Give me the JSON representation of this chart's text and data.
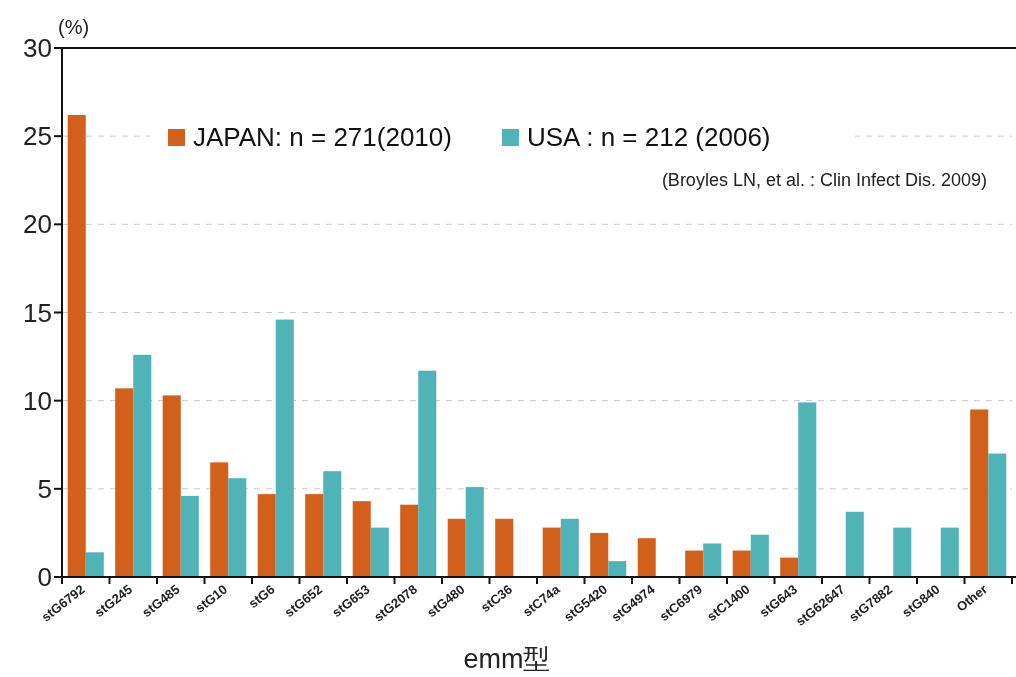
{
  "chart_data": {
    "type": "bar",
    "ylabel": "(%)",
    "xlabel": "emm型",
    "categories": [
      "stG6792",
      "stG245",
      "stG485",
      "stG10",
      "stG6",
      "stG652",
      "stG653",
      "stG2078",
      "stG480",
      "stC36",
      "stC74a",
      "stG5420",
      "stG4974",
      "stC6979",
      "stC1400",
      "stG643",
      "stG62647",
      "stG7882",
      "stG840",
      "Other"
    ],
    "series": [
      {
        "name": "JAPAN: n = 271(2010)",
        "color": "#d2601a",
        "values": [
          26.2,
          10.7,
          10.3,
          6.5,
          4.7,
          4.7,
          4.3,
          4.1,
          3.3,
          3.3,
          2.8,
          2.5,
          2.2,
          1.5,
          1.5,
          1.1,
          0,
          0,
          0,
          9.5
        ]
      },
      {
        "name": "USA : n = 212 (2006)",
        "color": "#4fb3b8",
        "values": [
          1.4,
          12.6,
          4.6,
          5.6,
          14.6,
          6.0,
          2.8,
          11.7,
          5.1,
          0,
          3.3,
          0.9,
          0,
          1.9,
          2.4,
          9.9,
          3.7,
          2.8,
          2.8,
          7.0
        ]
      }
    ],
    "ylim": [
      0,
      30
    ],
    "yticks": [
      0,
      5,
      10,
      15,
      20,
      25,
      30
    ],
    "grid": "y",
    "legend": "top",
    "annotations": [
      "(Broyles LN, et al. : Clin Infect Dis. 2009)"
    ]
  }
}
